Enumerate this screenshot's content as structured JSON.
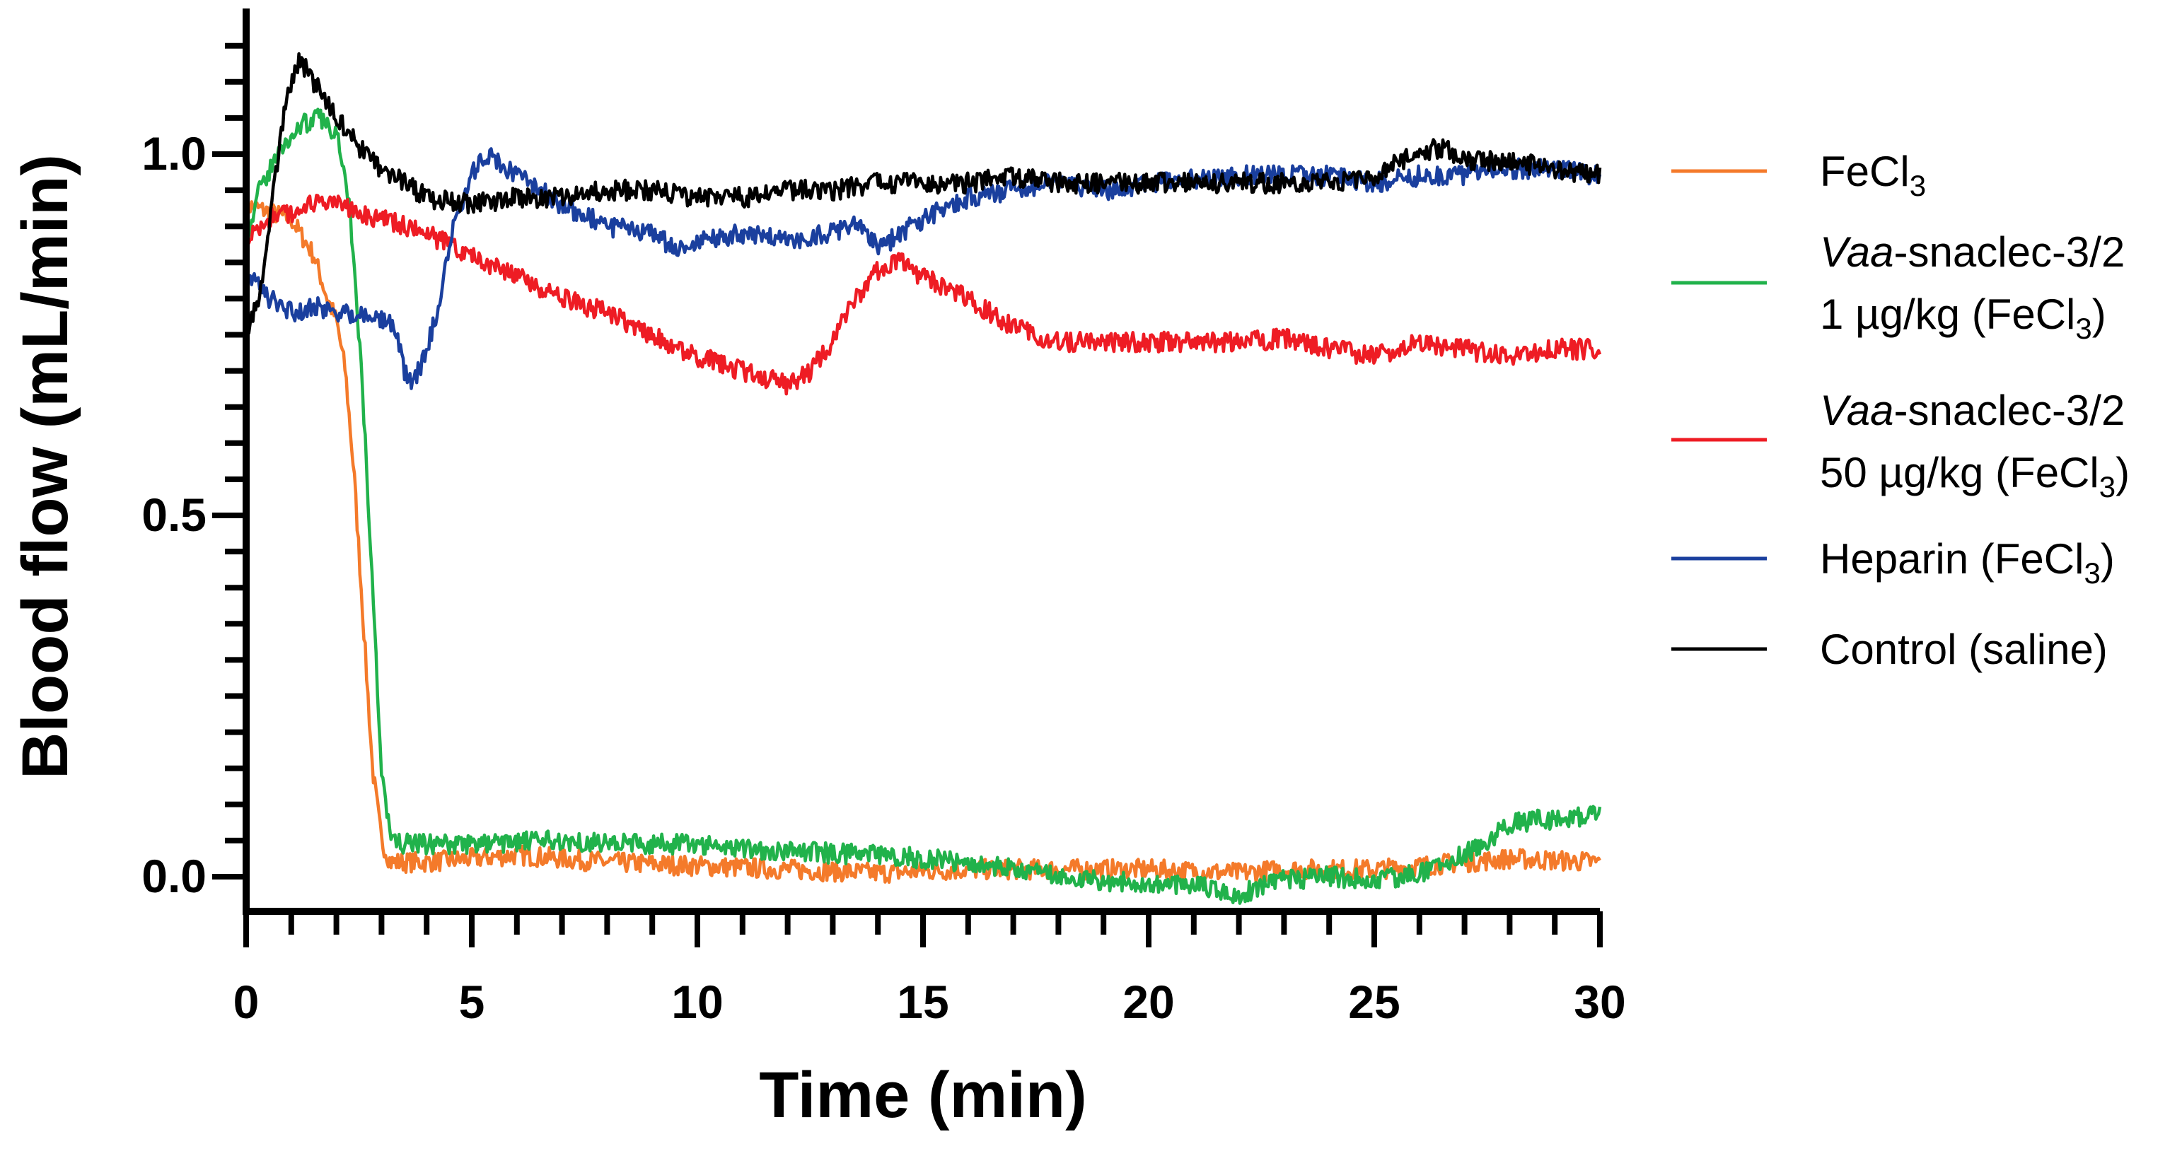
{
  "chart_data": {
    "type": "line",
    "title": "",
    "xlabel": "Time (min)",
    "ylabel": "Blood flow (mL/min)",
    "xlim": [
      0,
      30
    ],
    "ylim": [
      -0.05,
      1.2
    ],
    "x_ticks": [
      "0",
      "5",
      "10",
      "15",
      "20",
      "25",
      "30"
    ],
    "y_ticks": [
      "0.0",
      "0.5",
      "1.0"
    ],
    "legend_position": "right",
    "series": [
      {
        "name": "FeCl3",
        "label_main": "FeCl",
        "label_sub": "3",
        "color": "#f47a2a",
        "points": [
          [
            0,
            0.93
          ],
          [
            0.5,
            0.92
          ],
          [
            1,
            0.91
          ],
          [
            1.5,
            0.86
          ],
          [
            1.8,
            0.8
          ],
          [
            2,
            0.77
          ],
          [
            2.2,
            0.7
          ],
          [
            2.4,
            0.55
          ],
          [
            2.6,
            0.35
          ],
          [
            2.8,
            0.15
          ],
          [
            3.0,
            0.05
          ],
          [
            3.2,
            0.02
          ],
          [
            4,
            0.02
          ],
          [
            5,
            0.025
          ],
          [
            6,
            0.03
          ],
          [
            8,
            0.02
          ],
          [
            10,
            0.015
          ],
          [
            12,
            0.01
          ],
          [
            14,
            0.005
          ],
          [
            16,
            0.01
          ],
          [
            18,
            0.01
          ],
          [
            20,
            0.01
          ],
          [
            22,
            0.005
          ],
          [
            23,
            0.01
          ],
          [
            25,
            0.01
          ],
          [
            27,
            0.02
          ],
          [
            28,
            0.025
          ],
          [
            30,
            0.02
          ]
        ]
      },
      {
        "name": "Vaa-snaclec-3/2 1 µg/kg (FeCl3)",
        "label_italic": "Vaa",
        "label_line1": "-snaclec-3/2",
        "label_line2_main": "1 µg/kg (FeCl",
        "label_line2_sub": "3",
        "label_line2_end": ")",
        "color": "#21b24b",
        "points": [
          [
            0,
            0.88
          ],
          [
            0.3,
            0.95
          ],
          [
            0.7,
            1.0
          ],
          [
            1.2,
            1.04
          ],
          [
            1.6,
            1.05
          ],
          [
            2.0,
            1.03
          ],
          [
            2.2,
            0.98
          ],
          [
            2.4,
            0.85
          ],
          [
            2.6,
            0.65
          ],
          [
            2.8,
            0.4
          ],
          [
            3.0,
            0.15
          ],
          [
            3.2,
            0.05
          ],
          [
            3.5,
            0.045
          ],
          [
            5,
            0.045
          ],
          [
            7,
            0.05
          ],
          [
            9,
            0.045
          ],
          [
            10,
            0.045
          ],
          [
            12,
            0.035
          ],
          [
            14,
            0.03
          ],
          [
            16,
            0.02
          ],
          [
            18,
            0.0
          ],
          [
            20,
            -0.01
          ],
          [
            21,
            -0.01
          ],
          [
            22,
            -0.025
          ],
          [
            23,
            -0.005
          ],
          [
            24,
            0.0
          ],
          [
            25,
            -0.005
          ],
          [
            26,
            0.005
          ],
          [
            27,
            0.03
          ],
          [
            27.5,
            0.05
          ],
          [
            28,
            0.075
          ],
          [
            29,
            0.08
          ],
          [
            30,
            0.085
          ]
        ]
      },
      {
        "name": "Vaa-snaclec-3/2 50 µg/kg (FeCl3)",
        "label_italic": "Vaa",
        "label_line1": "-snaclec-3/2",
        "label_line2_main": "50 µg/kg (FeCl",
        "label_line2_sub": "3",
        "label_line2_end": ")",
        "color": "#ee1c24",
        "points": [
          [
            0,
            0.88
          ],
          [
            0.5,
            0.91
          ],
          [
            1,
            0.92
          ],
          [
            1.5,
            0.93
          ],
          [
            2,
            0.93
          ],
          [
            3,
            0.91
          ],
          [
            4,
            0.89
          ],
          [
            5,
            0.86
          ],
          [
            6,
            0.83
          ],
          [
            7,
            0.8
          ],
          [
            8,
            0.78
          ],
          [
            9,
            0.75
          ],
          [
            10,
            0.72
          ],
          [
            11,
            0.7
          ],
          [
            11.5,
            0.69
          ],
          [
            12,
            0.68
          ],
          [
            12.5,
            0.7
          ],
          [
            13,
            0.74
          ],
          [
            13.5,
            0.8
          ],
          [
            14,
            0.84
          ],
          [
            14.5,
            0.85
          ],
          [
            15,
            0.83
          ],
          [
            16,
            0.8
          ],
          [
            17,
            0.76
          ],
          [
            18,
            0.74
          ],
          [
            20,
            0.74
          ],
          [
            22,
            0.74
          ],
          [
            23,
            0.745
          ],
          [
            24,
            0.73
          ],
          [
            25,
            0.72
          ],
          [
            26,
            0.74
          ],
          [
            27,
            0.73
          ],
          [
            28,
            0.72
          ],
          [
            29,
            0.73
          ],
          [
            30,
            0.73
          ]
        ]
      },
      {
        "name": "Heparin (FeCl3)",
        "label_main": "Heparin (FeCl",
        "label_sub": "3",
        "label_end": ")",
        "color": "#1a3f9e",
        "points": [
          [
            0,
            0.84
          ],
          [
            0.5,
            0.8
          ],
          [
            1,
            0.78
          ],
          [
            1.5,
            0.79
          ],
          [
            2,
            0.78
          ],
          [
            2.5,
            0.78
          ],
          [
            3,
            0.77
          ],
          [
            3.3,
            0.76
          ],
          [
            3.5,
            0.7
          ],
          [
            3.7,
            0.68
          ],
          [
            4,
            0.73
          ],
          [
            4.3,
            0.8
          ],
          [
            4.6,
            0.9
          ],
          [
            5,
            0.97
          ],
          [
            5.3,
            1.0
          ],
          [
            5.6,
            0.99
          ],
          [
            6,
            0.97
          ],
          [
            7,
            0.93
          ],
          [
            8,
            0.9
          ],
          [
            9,
            0.89
          ],
          [
            9.5,
            0.87
          ],
          [
            10,
            0.88
          ],
          [
            11,
            0.89
          ],
          [
            12,
            0.88
          ],
          [
            13,
            0.89
          ],
          [
            13.5,
            0.91
          ],
          [
            14,
            0.87
          ],
          [
            15,
            0.91
          ],
          [
            16,
            0.94
          ],
          [
            17,
            0.95
          ],
          [
            18,
            0.96
          ],
          [
            19,
            0.95
          ],
          [
            20,
            0.96
          ],
          [
            22,
            0.97
          ],
          [
            24,
            0.97
          ],
          [
            25,
            0.96
          ],
          [
            26,
            0.97
          ],
          [
            27,
            0.97
          ],
          [
            28,
            0.98
          ],
          [
            29,
            0.98
          ],
          [
            30,
            0.97
          ]
        ]
      },
      {
        "name": "Control (saline)",
        "label_main": "Control (saline)",
        "color": "#000000",
        "points": [
          [
            0,
            0.75
          ],
          [
            0.3,
            0.8
          ],
          [
            0.6,
            0.95
          ],
          [
            0.9,
            1.08
          ],
          [
            1.2,
            1.13
          ],
          [
            1.5,
            1.1
          ],
          [
            2,
            1.05
          ],
          [
            2.5,
            1.01
          ],
          [
            3,
            0.98
          ],
          [
            3.5,
            0.96
          ],
          [
            4,
            0.94
          ],
          [
            5,
            0.93
          ],
          [
            6,
            0.94
          ],
          [
            7,
            0.94
          ],
          [
            8,
            0.95
          ],
          [
            9,
            0.95
          ],
          [
            10,
            0.94
          ],
          [
            11,
            0.94
          ],
          [
            12,
            0.95
          ],
          [
            13,
            0.95
          ],
          [
            14,
            0.96
          ],
          [
            15,
            0.96
          ],
          [
            16,
            0.96
          ],
          [
            17,
            0.97
          ],
          [
            18,
            0.96
          ],
          [
            19,
            0.96
          ],
          [
            20,
            0.96
          ],
          [
            21,
            0.96
          ],
          [
            22,
            0.96
          ],
          [
            23,
            0.96
          ],
          [
            24,
            0.96
          ],
          [
            25,
            0.97
          ],
          [
            25.5,
            0.99
          ],
          [
            26,
            1.0
          ],
          [
            26.5,
            1.01
          ],
          [
            27,
            0.99
          ],
          [
            28,
            0.99
          ],
          [
            29,
            0.98
          ],
          [
            30,
            0.97
          ]
        ]
      }
    ]
  }
}
